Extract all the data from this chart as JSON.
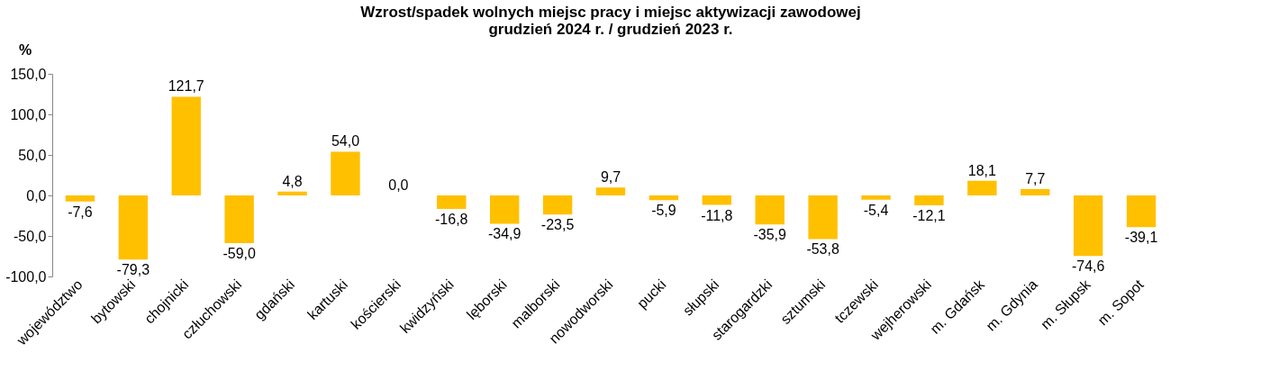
{
  "chart_data": {
    "type": "bar",
    "title": [
      "Wzrost/spadek wolnych miejsc pracy i miejsc aktywizacji zawodowej",
      "grudzień 2024 r. / grudzień 2023 r."
    ],
    "ylabel": "%",
    "categories": [
      "województwo",
      "bytowski",
      "chojnicki",
      "człuchowski",
      "gdański",
      "kartuski",
      "kościerski",
      "kwidzyński",
      "lęborski",
      "malborski",
      "nowodworski",
      "pucki",
      "słupski",
      "starogardzki",
      "sztumski",
      "tczewski",
      "wejherowski",
      "m. Gdańsk",
      "m. Gdynia",
      "m. Słupsk",
      "m. Sopot"
    ],
    "values": [
      -7.6,
      -79.3,
      121.7,
      -59.0,
      4.8,
      54.0,
      0.0,
      -16.8,
      -34.9,
      -23.5,
      9.7,
      -5.9,
      -11.8,
      -35.9,
      -53.8,
      -5.4,
      -12.1,
      18.1,
      7.7,
      -74.6,
      -39.1
    ],
    "value_labels": [
      "-7,6",
      "-79,3",
      "121,7",
      "-59,0",
      "4,8",
      "54,0",
      "0,0",
      "-16,8",
      "-34,9",
      "-23,5",
      "9,7",
      "-5,9",
      "-11,8",
      "-35,9",
      "-53,8",
      "-5,4",
      "-12,1",
      "18,1",
      "7,7",
      "-74,6",
      "-39,1"
    ],
    "color": "#ffc000",
    "ylim": [
      -100,
      150
    ],
    "yticks": [
      {
        "value": -100,
        "label": "-100,0"
      },
      {
        "value": -50,
        "label": "-50,0"
      },
      {
        "value": 0,
        "label": "0,0"
      },
      {
        "value": 50,
        "label": "50,0"
      },
      {
        "value": 100,
        "label": "100,0"
      },
      {
        "value": 150,
        "label": "150,0"
      }
    ],
    "grid": false
  }
}
